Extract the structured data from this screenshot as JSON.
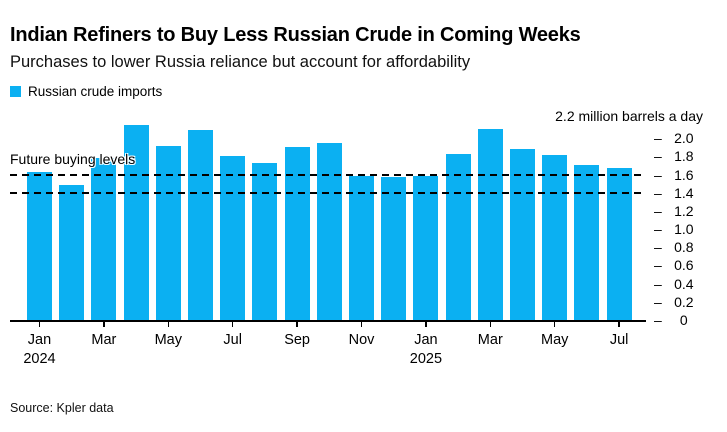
{
  "header": {
    "title": "Indian Refiners to Buy Less Russian Crude in Coming Weeks",
    "subtitle": "Purchases to lower Russia reliance but account for affordability"
  },
  "legend": {
    "label": "Russian crude imports"
  },
  "chart_data": {
    "type": "bar",
    "title": "Indian Refiners to Buy Less Russian Crude in Coming Weeks",
    "subtitle": "Purchases to lower Russia reliance but account for affordability",
    "series_name": "Russian crude imports",
    "unit_top_label": "2.2 million barrels a day",
    "categories": [
      "Jan 2024",
      "Feb 2024",
      "Mar 2024",
      "Apr 2024",
      "May 2024",
      "Jun 2024",
      "Jul 2024",
      "Aug 2024",
      "Sep 2024",
      "Oct 2024",
      "Nov 2024",
      "Dec 2024",
      "Jan 2025",
      "Feb 2025",
      "Mar 2025",
      "Apr 2025",
      "May 2025",
      "Jun 2025",
      "Jul 2025"
    ],
    "values": [
      1.63,
      1.48,
      1.78,
      2.15,
      1.91,
      2.09,
      1.8,
      1.73,
      1.9,
      1.95,
      1.58,
      1.57,
      1.58,
      1.83,
      2.1,
      1.88,
      1.81,
      1.71,
      1.67
    ],
    "ylabel": "million barrels a day",
    "ylim": [
      0,
      2.2
    ],
    "yaxis_side": "right",
    "grid": false,
    "legend_position": "top-left",
    "y_ticks": [
      {
        "value": 2.0,
        "label": "2.0"
      },
      {
        "value": 1.8,
        "label": "1.8"
      },
      {
        "value": 1.6,
        "label": "1.6"
      },
      {
        "value": 1.4,
        "label": "1.4"
      },
      {
        "value": 1.2,
        "label": "1.2"
      },
      {
        "value": 1.0,
        "label": "1.0"
      },
      {
        "value": 0.8,
        "label": "0.8"
      },
      {
        "value": 0.6,
        "label": "0.6"
      },
      {
        "value": 0.4,
        "label": "0.4"
      },
      {
        "value": 0.2,
        "label": "0.2"
      },
      {
        "value": 0,
        "label": "0"
      }
    ],
    "x_ticks": [
      {
        "index": 0,
        "label": "Jan",
        "year": "2024"
      },
      {
        "index": 2,
        "label": "Mar"
      },
      {
        "index": 4,
        "label": "May"
      },
      {
        "index": 6,
        "label": "Jul"
      },
      {
        "index": 8,
        "label": "Sep"
      },
      {
        "index": 10,
        "label": "Nov"
      },
      {
        "index": 12,
        "label": "Jan",
        "year": "2025"
      },
      {
        "index": 14,
        "label": "Mar"
      },
      {
        "index": 16,
        "label": "May"
      },
      {
        "index": 18,
        "label": "Jul"
      }
    ],
    "annotation": {
      "label": "Future buying levels",
      "levels": [
        1.6,
        1.4
      ]
    },
    "bar_color": "#0bb0f2",
    "axis_color": "#000000",
    "background": "#ffffff"
  },
  "footer": {
    "source": "Source: Kpler data"
  }
}
